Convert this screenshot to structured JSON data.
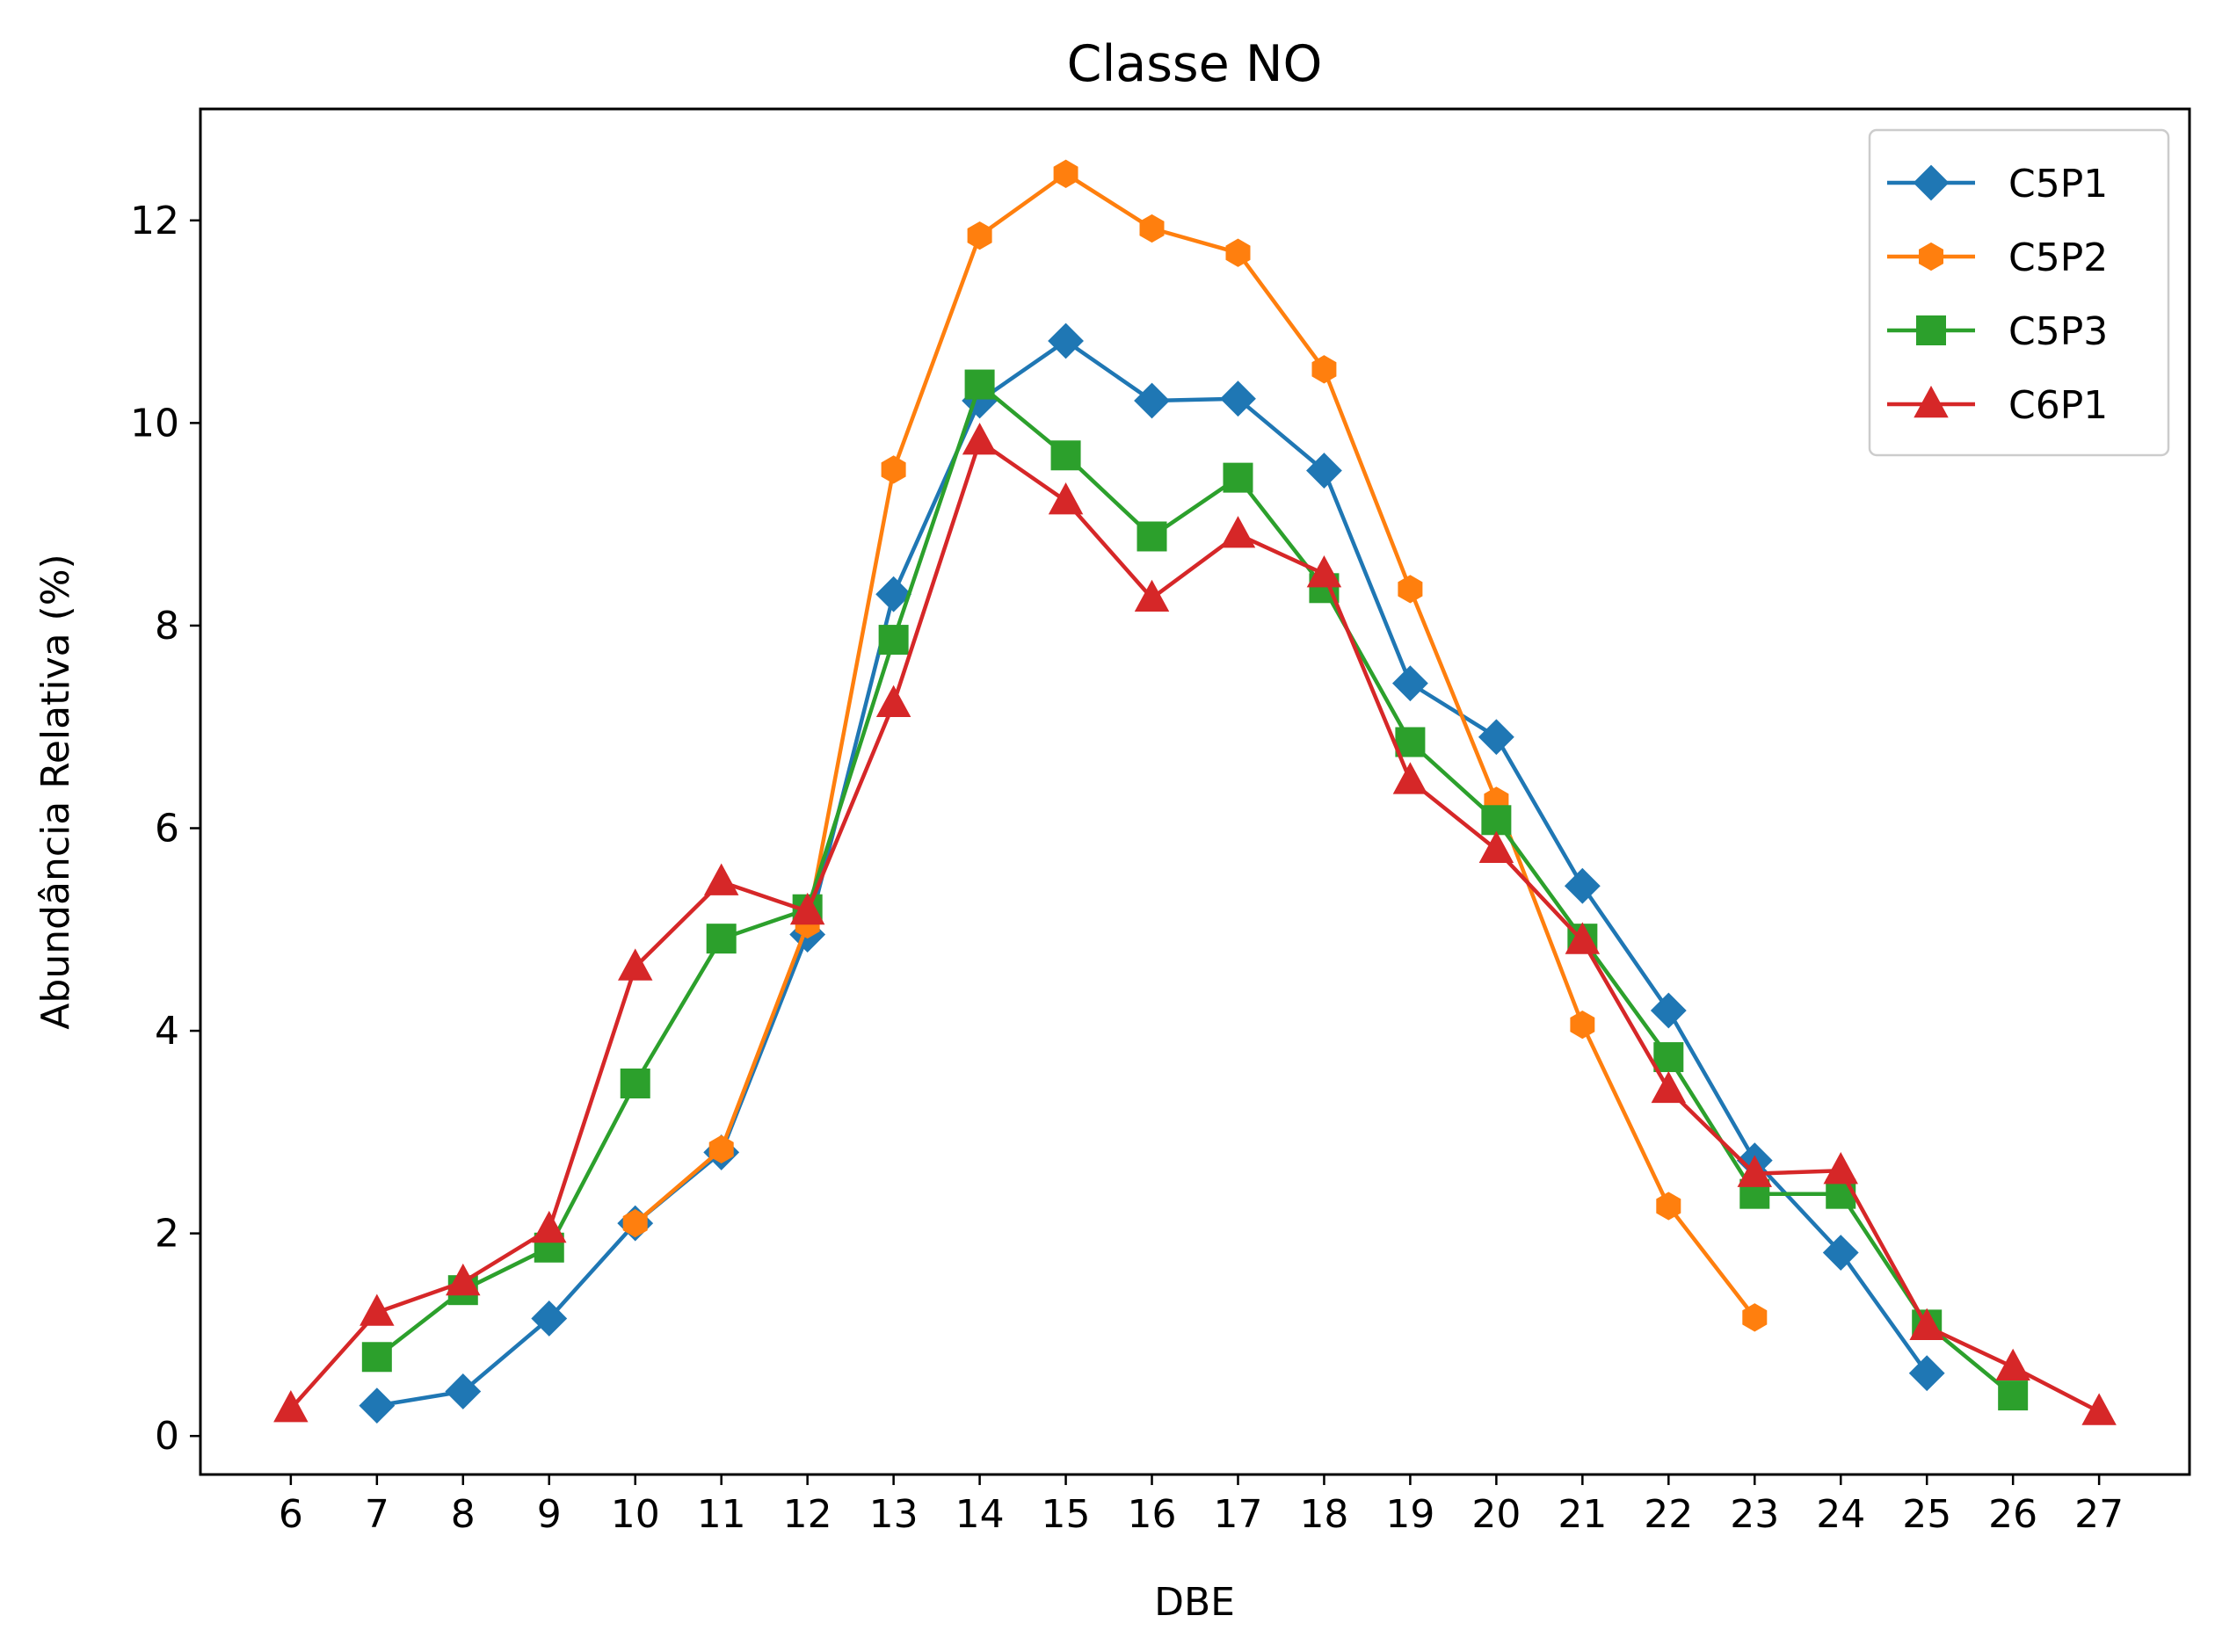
{
  "chart_data": {
    "type": "line",
    "title": "Classe NO",
    "xlabel": "DBE",
    "ylabel": "Abundância Relativa (%)",
    "xticks": [
      6,
      7,
      8,
      9,
      10,
      11,
      12,
      13,
      14,
      15,
      16,
      17,
      18,
      19,
      20,
      21,
      22,
      23,
      24,
      25,
      26,
      27
    ],
    "yticks": [
      0,
      2,
      4,
      6,
      8,
      10,
      12
    ],
    "xlim": [
      4.95,
      28.05
    ],
    "ylim": [
      -0.38,
      13.1
    ],
    "grid": false,
    "legend_position": "top-right",
    "series": [
      {
        "name": "C5P1",
        "color": "#1f77b4",
        "marker": "diamond",
        "x": [
          7,
          8,
          9,
          10,
          11,
          12,
          13,
          14,
          15,
          16,
          17,
          18,
          19,
          20,
          21,
          22,
          23,
          24,
          25
        ],
        "y": [
          0.3,
          0.44,
          1.16,
          2.1,
          2.8,
          4.95,
          8.31,
          10.22,
          10.81,
          10.22,
          10.24,
          9.53,
          7.43,
          6.9,
          5.43,
          4.2,
          2.72,
          1.81,
          0.62
        ]
      },
      {
        "name": "C5P2",
        "color": "#ff7f0e",
        "marker": "hexagon",
        "x": [
          10,
          11,
          12,
          13,
          14,
          15,
          16,
          17,
          18,
          19,
          20,
          21,
          22,
          23
        ],
        "y": [
          2.1,
          2.83,
          5.05,
          9.54,
          11.85,
          12.46,
          11.92,
          11.68,
          10.53,
          8.36,
          6.27,
          4.06,
          2.27,
          1.17
        ]
      },
      {
        "name": "C5P3",
        "color": "#2ca02c",
        "marker": "square",
        "x": [
          7,
          8,
          9,
          10,
          11,
          12,
          13,
          14,
          15,
          16,
          17,
          18,
          19,
          20,
          21,
          22,
          23,
          24,
          25,
          26
        ],
        "y": [
          0.78,
          1.44,
          1.86,
          3.48,
          4.91,
          5.2,
          7.86,
          10.38,
          9.68,
          8.88,
          9.46,
          8.37,
          6.85,
          6.08,
          4.91,
          3.74,
          2.39,
          2.39,
          1.1,
          0.4
        ]
      },
      {
        "name": "C6P1",
        "color": "#d62728",
        "marker": "triangle",
        "x": [
          6,
          7,
          8,
          9,
          10,
          11,
          12,
          13,
          14,
          15,
          16,
          17,
          18,
          19,
          20,
          21,
          22,
          23,
          24,
          25,
          26,
          27
        ],
        "y": [
          0.27,
          1.22,
          1.52,
          2.04,
          4.63,
          5.47,
          5.18,
          7.23,
          9.82,
          9.23,
          8.27,
          8.9,
          8.51,
          6.47,
          5.79,
          4.89,
          3.42,
          2.59,
          2.62,
          1.08,
          0.68,
          0.24
        ]
      }
    ]
  }
}
